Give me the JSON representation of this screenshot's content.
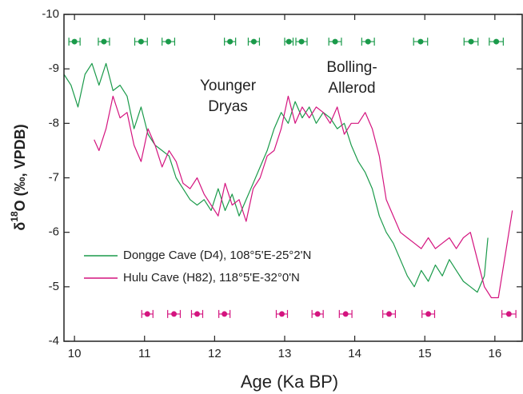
{
  "chart_data": {
    "type": "line",
    "xlabel": "Age (Ka BP)",
    "ylabel": {
      "prefix": "δ",
      "sup": "18",
      "suffix": "O (‰, VPDB)"
    },
    "annotations": [
      [
        "Younger",
        "Dryas"
      ],
      [
        "Bolling-",
        "Allerod"
      ]
    ],
    "xlim": [
      9.85,
      16.39
    ],
    "ylim": [
      -4,
      -10
    ],
    "xticks": [
      10,
      11,
      12,
      13,
      14,
      15,
      16
    ],
    "yticks": [
      -10,
      -9,
      -8,
      -7,
      -6,
      -5,
      -4
    ],
    "series": [
      {
        "name": "Dongge Cave (D4), 108°5'E-25°2'N",
        "color": "#1a9a4a",
        "x": [
          9.85,
          9.95,
          10.05,
          10.15,
          10.25,
          10.35,
          10.45,
          10.55,
          10.65,
          10.75,
          10.85,
          10.95,
          11.05,
          11.15,
          11.25,
          11.35,
          11.45,
          11.55,
          11.65,
          11.75,
          11.85,
          11.95,
          12.05,
          12.15,
          12.25,
          12.35,
          12.45,
          12.55,
          12.65,
          12.75,
          12.85,
          12.95,
          13.05,
          13.15,
          13.25,
          13.35,
          13.45,
          13.55,
          13.65,
          13.75,
          13.85,
          13.95,
          14.05,
          14.15,
          14.25,
          14.35,
          14.45,
          14.55,
          14.65,
          14.75,
          14.85,
          14.95,
          15.05,
          15.15,
          15.25,
          15.35,
          15.45,
          15.55,
          15.65,
          15.75,
          15.85,
          15.9
        ],
        "values": [
          -8.9,
          -8.7,
          -8.3,
          -8.9,
          -9.1,
          -8.7,
          -9.1,
          -8.6,
          -8.7,
          -8.5,
          -7.9,
          -8.3,
          -7.8,
          -7.6,
          -7.5,
          -7.4,
          -7.0,
          -6.8,
          -6.6,
          -6.5,
          -6.6,
          -6.4,
          -6.8,
          -6.4,
          -6.7,
          -6.3,
          -6.6,
          -6.9,
          -7.2,
          -7.5,
          -7.9,
          -8.2,
          -8.0,
          -8.4,
          -8.1,
          -8.3,
          -8.0,
          -8.2,
          -8.1,
          -7.9,
          -8.0,
          -7.6,
          -7.3,
          -7.1,
          -6.8,
          -6.3,
          -6.0,
          -5.8,
          -5.5,
          -5.2,
          -5.0,
          -5.3,
          -5.1,
          -5.4,
          -5.2,
          -5.5,
          -5.3,
          -5.1,
          -5.0,
          -4.9,
          -5.2,
          -5.9
        ]
      },
      {
        "name": "Hulu Cave (H82), 118°5'E-32°0'N",
        "color": "#d4147f",
        "x": [
          10.28,
          10.35,
          10.45,
          10.55,
          10.65,
          10.75,
          10.85,
          10.95,
          11.05,
          11.15,
          11.25,
          11.35,
          11.45,
          11.55,
          11.65,
          11.75,
          11.85,
          11.95,
          12.05,
          12.15,
          12.25,
          12.35,
          12.45,
          12.55,
          12.65,
          12.75,
          12.85,
          12.95,
          13.05,
          13.15,
          13.25,
          13.35,
          13.45,
          13.55,
          13.65,
          13.75,
          13.85,
          13.95,
          14.05,
          14.15,
          14.25,
          14.35,
          14.45,
          14.55,
          14.65,
          14.75,
          14.85,
          14.95,
          15.05,
          15.15,
          15.25,
          15.35,
          15.45,
          15.55,
          15.65,
          15.75,
          15.85,
          15.95,
          16.05,
          16.15,
          16.25
        ],
        "values": [
          -7.7,
          -7.5,
          -7.9,
          -8.5,
          -8.1,
          -8.2,
          -7.6,
          -7.3,
          -7.9,
          -7.6,
          -7.2,
          -7.5,
          -7.3,
          -6.9,
          -6.8,
          -7.0,
          -6.7,
          -6.5,
          -6.3,
          -6.9,
          -6.5,
          -6.6,
          -6.2,
          -6.8,
          -7.0,
          -7.4,
          -7.5,
          -7.9,
          -8.5,
          -8.0,
          -8.3,
          -8.1,
          -8.3,
          -8.2,
          -8.0,
          -8.3,
          -7.8,
          -8.0,
          -8.0,
          -8.2,
          -7.9,
          -7.4,
          -6.6,
          -6.3,
          -6.0,
          -5.9,
          -5.8,
          -5.7,
          -5.9,
          -5.7,
          -5.8,
          -5.9,
          -5.7,
          -5.9,
          -6.0,
          -5.5,
          -5.0,
          -4.8,
          -4.8,
          -5.6,
          -6.4
        ]
      }
    ],
    "dates": [
      {
        "color": "#1a9a4a",
        "y": -9.5,
        "x": [
          10.0,
          10.42,
          10.95,
          11.34,
          12.22,
          12.56,
          13.06,
          13.24,
          13.72,
          14.19,
          14.94,
          15.66,
          16.02
        ],
        "xerr": [
          0.08,
          0.08,
          0.09,
          0.09,
          0.08,
          0.08,
          0.06,
          0.08,
          0.09,
          0.09,
          0.1,
          0.1,
          0.1
        ]
      },
      {
        "color": "#d4147f",
        "y": -4.5,
        "x": [
          11.04,
          11.42,
          11.75,
          12.14,
          12.96,
          13.47,
          13.87,
          14.49,
          15.05,
          16.2
        ],
        "xerr": [
          0.08,
          0.09,
          0.08,
          0.08,
          0.08,
          0.08,
          0.09,
          0.09,
          0.09,
          0.1
        ]
      }
    ]
  }
}
